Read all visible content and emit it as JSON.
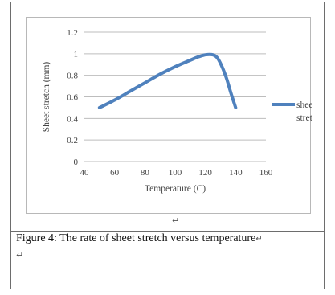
{
  "chart_data": {
    "type": "line",
    "xlabel": "Temperature (C)",
    "ylabel": "Sheet stretch (mm)",
    "xlim": [
      40,
      160
    ],
    "ylim": [
      0,
      1.2
    ],
    "x_ticks": [
      "40",
      "60",
      "80",
      "100",
      "120",
      "140",
      "160"
    ],
    "y_ticks": [
      "0",
      "0.2",
      "0.4",
      "0.6",
      "0.8",
      "1",
      "1.2"
    ],
    "grid": "horizontal",
    "legend_position": "right",
    "series": [
      {
        "name": "sheet stretch",
        "color": "#4f81bd",
        "x": [
          50,
          60,
          70,
          80,
          90,
          100,
          110,
          115,
          120,
          125,
          128,
          131,
          134,
          137,
          140
        ],
        "y": [
          0.5,
          0.57,
          0.65,
          0.73,
          0.81,
          0.88,
          0.94,
          0.97,
          0.99,
          0.99,
          0.96,
          0.88,
          0.77,
          0.63,
          0.5
        ]
      }
    ]
  },
  "caption": {
    "text": "Figure 4: The rate of sheet stretch versus temperature",
    "mark": "↵"
  },
  "figure_mark": "↵",
  "trailing_mark": "↵"
}
